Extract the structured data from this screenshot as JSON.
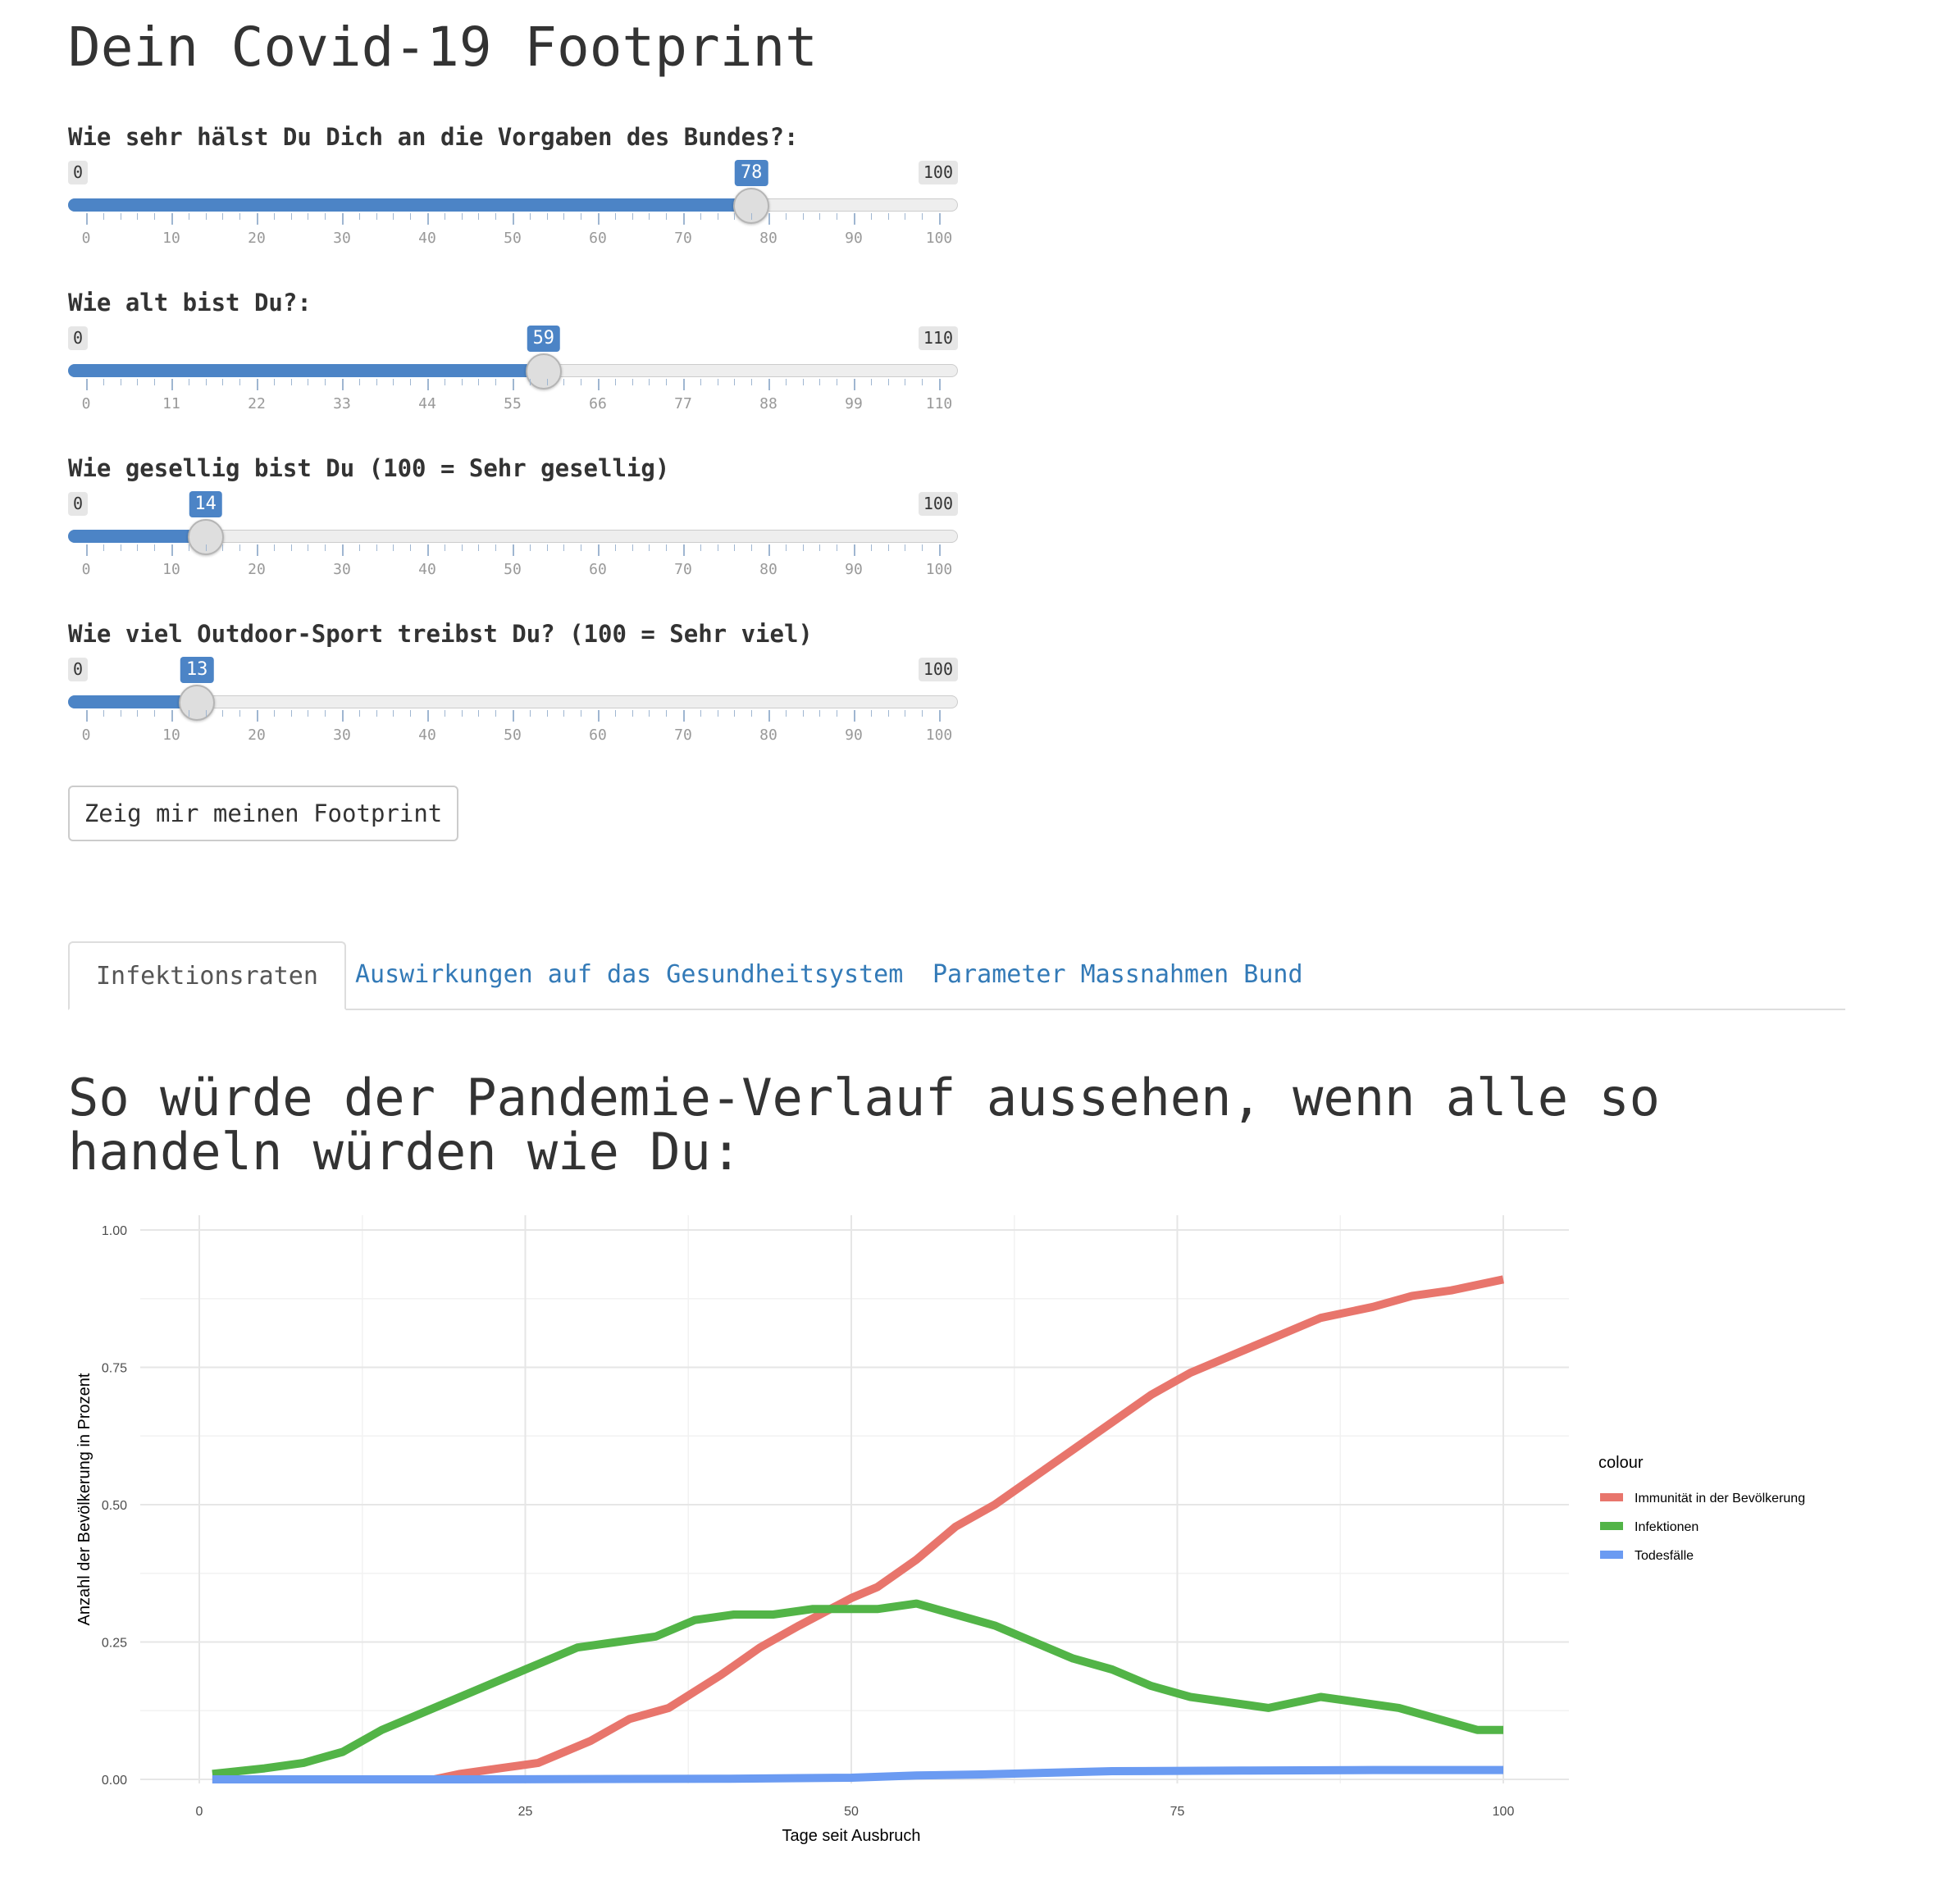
{
  "page_title": "Dein Covid-19 Footprint",
  "sliders": [
    {
      "label": "Wie sehr hälst Du Dich an die Vorgaben des Bundes?:",
      "min": 0,
      "max": 100,
      "value": 78,
      "min_label": "0",
      "max_label": "100",
      "value_label": "78",
      "ticks": [
        "0",
        "10",
        "20",
        "30",
        "40",
        "50",
        "60",
        "70",
        "80",
        "90",
        "100"
      ]
    },
    {
      "label": "Wie alt bist Du?:",
      "min": 0,
      "max": 110,
      "value": 59,
      "min_label": "0",
      "max_label": "110",
      "value_label": "59",
      "ticks": [
        "0",
        "11",
        "22",
        "33",
        "44",
        "55",
        "66",
        "77",
        "88",
        "99",
        "110"
      ]
    },
    {
      "label": "Wie gesellig bist Du (100 = Sehr gesellig)",
      "min": 0,
      "max": 100,
      "value": 14,
      "min_label": "0",
      "max_label": "100",
      "value_label": "14",
      "ticks": [
        "0",
        "10",
        "20",
        "30",
        "40",
        "50",
        "60",
        "70",
        "80",
        "90",
        "100"
      ]
    },
    {
      "label": "Wie viel Outdoor-Sport treibst Du? (100 = Sehr viel)",
      "min": 0,
      "max": 100,
      "value": 13,
      "min_label": "0",
      "max_label": "100",
      "value_label": "13",
      "ticks": [
        "0",
        "10",
        "20",
        "30",
        "40",
        "50",
        "60",
        "70",
        "80",
        "90",
        "100"
      ]
    }
  ],
  "button_label": "Zeig mir meinen Footprint",
  "tabs": [
    {
      "label": "Infektionsraten",
      "active": true
    },
    {
      "label": "Auswirkungen auf das Gesundheitsystem",
      "active": false
    },
    {
      "label": "Parameter Massnahmen Bund",
      "active": false
    }
  ],
  "section_heading": "So würde der Pandemie-Verlauf aussehen, wenn alle so handeln würden wie Du:",
  "chart_data": {
    "type": "line",
    "xlabel": "Tage seit Ausbruch",
    "ylabel": "Anzahl der Bevölkerung in Prozent",
    "xlim": [
      0,
      100
    ],
    "ylim": [
      0,
      1
    ],
    "x_ticks": [
      0,
      25,
      50,
      75,
      100
    ],
    "x_tick_labels": [
      "0",
      "25",
      "50",
      "75",
      "100"
    ],
    "y_ticks": [
      0,
      0.25,
      0.5,
      0.75,
      1
    ],
    "y_tick_labels": [
      "0.00",
      "0.25",
      "0.50",
      "0.75",
      "1.00"
    ],
    "grid": true,
    "legend_title": "colour",
    "legend_position": "right",
    "series": [
      {
        "name": "Immunität in der Bevölkerung",
        "color": "#e8756c",
        "x": [
          1,
          5,
          10,
          15,
          18,
          20,
          23,
          26,
          30,
          33,
          36,
          40,
          43,
          46,
          50,
          52,
          55,
          58,
          61,
          64,
          67,
          70,
          73,
          76,
          80,
          83,
          86,
          90,
          93,
          96,
          100
        ],
        "y": [
          0,
          0,
          0,
          0,
          0,
          0.01,
          0.02,
          0.03,
          0.07,
          0.11,
          0.13,
          0.19,
          0.24,
          0.28,
          0.33,
          0.35,
          0.4,
          0.46,
          0.5,
          0.55,
          0.6,
          0.65,
          0.7,
          0.74,
          0.78,
          0.81,
          0.84,
          0.86,
          0.88,
          0.89,
          0.91
        ]
      },
      {
        "name": "Infektionen",
        "color": "#52b447",
        "x": [
          1,
          5,
          8,
          11,
          14,
          17,
          20,
          23,
          26,
          29,
          32,
          35,
          38,
          41,
          44,
          47,
          50,
          52,
          55,
          58,
          61,
          64,
          67,
          70,
          73,
          76,
          79,
          82,
          86,
          89,
          92,
          95,
          98,
          100
        ],
        "y": [
          0.01,
          0.02,
          0.03,
          0.05,
          0.09,
          0.12,
          0.15,
          0.18,
          0.21,
          0.24,
          0.25,
          0.26,
          0.29,
          0.3,
          0.3,
          0.31,
          0.31,
          0.31,
          0.32,
          0.3,
          0.28,
          0.25,
          0.22,
          0.2,
          0.17,
          0.15,
          0.14,
          0.13,
          0.15,
          0.14,
          0.13,
          0.11,
          0.09,
          0.09
        ]
      },
      {
        "name": "Todesfälle",
        "color": "#6b9bf2",
        "x": [
          1,
          20,
          40,
          50,
          55,
          60,
          65,
          70,
          80,
          90,
          100
        ],
        "y": [
          0,
          0,
          0.001,
          0.003,
          0.007,
          0.009,
          0.012,
          0.015,
          0.016,
          0.017,
          0.017
        ]
      }
    ]
  }
}
